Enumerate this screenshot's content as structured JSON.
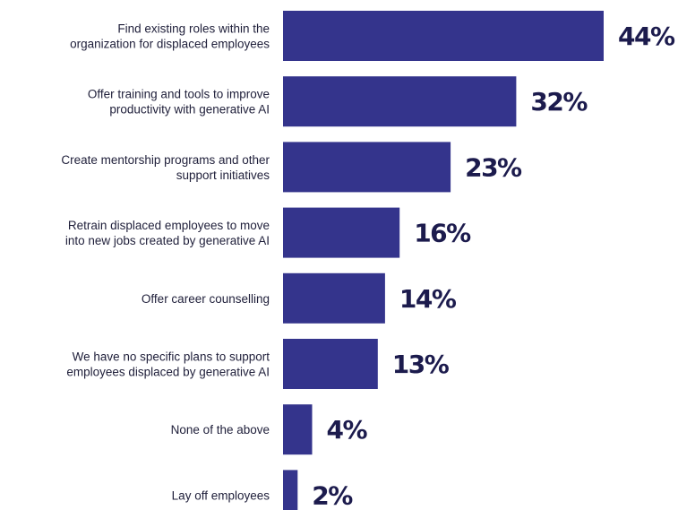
{
  "chart_data": {
    "type": "bar",
    "orientation": "horizontal",
    "categories": [
      [
        "Find existing roles within the",
        "organization for displaced employees"
      ],
      [
        "Offer training and tools to improve",
        "productivity with generative AI"
      ],
      [
        "Create mentorship programs and other",
        "support initiatives"
      ],
      [
        "Retrain displaced employees to move",
        "into new jobs created by generative AI"
      ],
      [
        "Offer career counselling"
      ],
      [
        "We have no specific plans to support",
        "employees displaced by generative AI"
      ],
      [
        "None of the above"
      ],
      [
        "Lay off employees"
      ]
    ],
    "values": [
      44,
      32,
      23,
      16,
      14,
      13,
      4,
      2
    ],
    "value_labels": [
      "44%",
      "32%",
      "23%",
      "16%",
      "14%",
      "13%",
      "4%",
      "2%"
    ],
    "unit": "%",
    "bar_color": "#34348c",
    "label_color": "#1c1b4d",
    "xlim": [
      0,
      44
    ],
    "grid": false,
    "legend": "none"
  }
}
